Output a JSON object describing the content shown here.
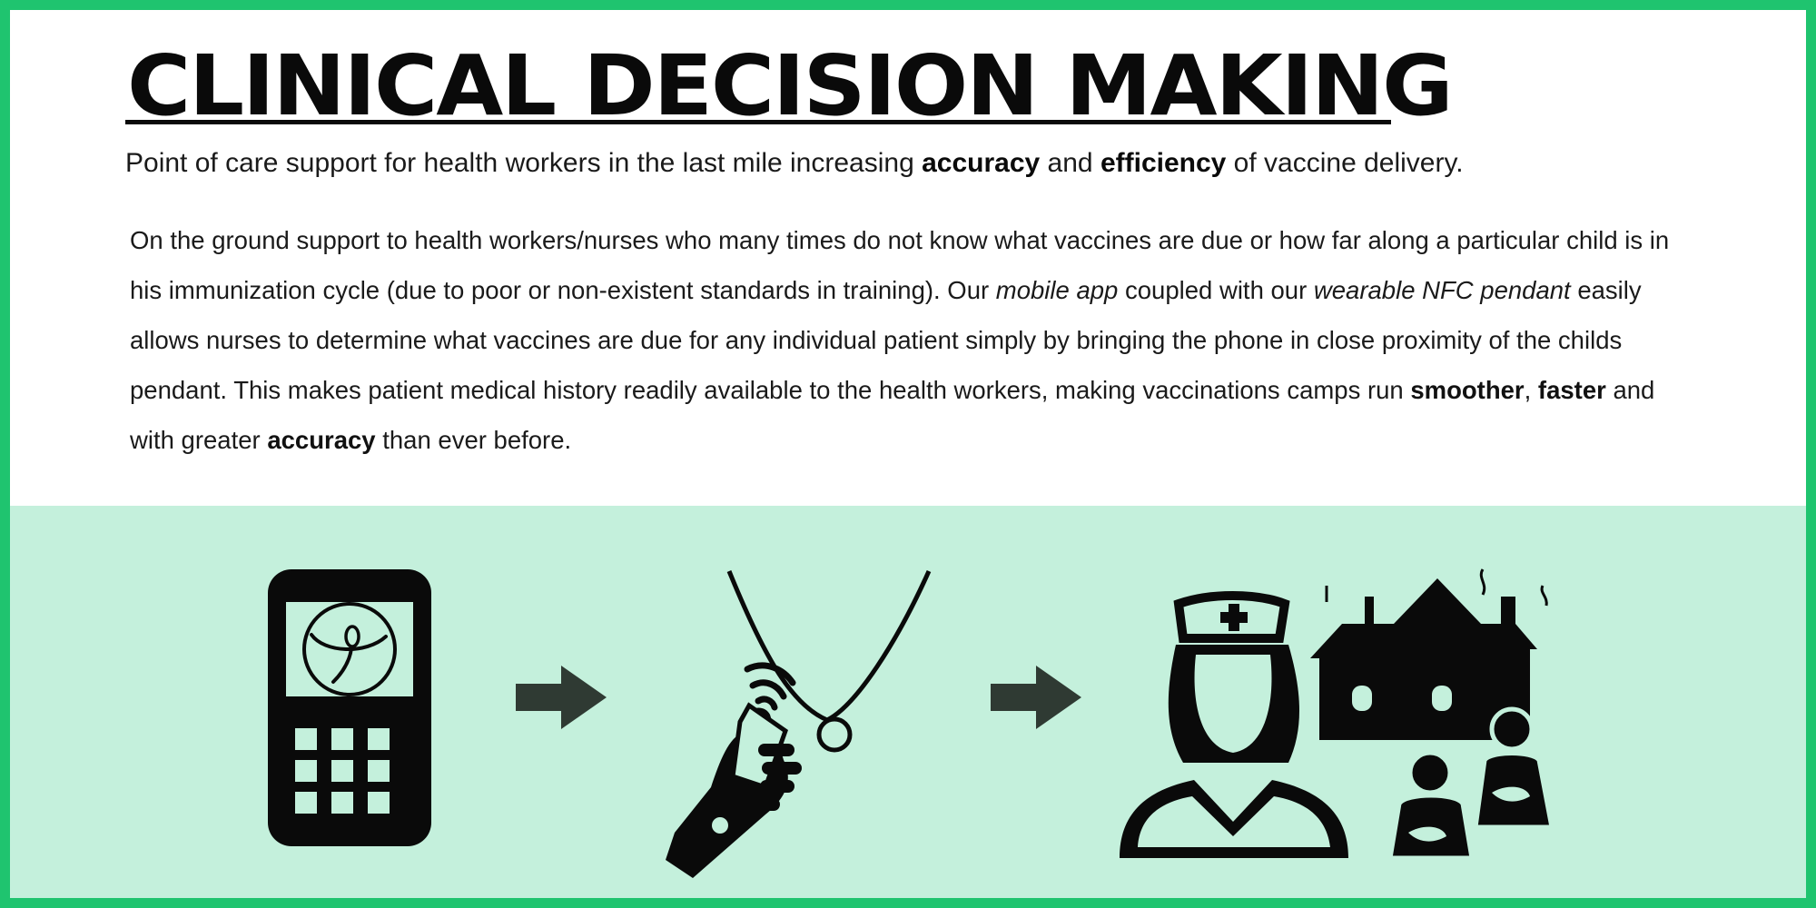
{
  "header": {
    "title": "CLINICAL DECISION MAKING",
    "subtitle_part1": "Point of care support for health workers in the last mile increasing ",
    "subtitle_accuracy": "accuracy",
    "subtitle_part2": " and ",
    "subtitle_efficiency": "efficiency",
    "subtitle_part3": " of vaccine delivery."
  },
  "body": {
    "seg1": "On the ground support to health workers/nurses who many times do not know what vaccines are due or how far along a particular child is in his immunization cycle (due to poor or non-existent standards in training). Our ",
    "mobile_app": "mobile app",
    "seg2": " coupled with our ",
    "nfc_pendant": "wearable NFC pendant",
    "seg3": " easily allows nurses to determine what vaccines are due for any individual patient simply by bringing the phone in close proximity of the childs pendant. This makes patient medical history readily available to the health workers, making vaccinations camps run ",
    "smoother": "smoother",
    "comma": ", ",
    "faster": "faster",
    "seg4": " and with greater ",
    "accuracy": "accuracy",
    "seg5": " than ever before."
  },
  "illustration": {
    "steps": [
      "phone-icon",
      "arrow-right-icon",
      "nfc-pendant-scan-icon",
      "arrow-right-icon",
      "nurse-village-icon"
    ]
  },
  "colors": {
    "border": "#1fc46f",
    "panel": "#c4f0dc",
    "ink": "#0a0a0a",
    "arrow": "#2f3a33"
  }
}
